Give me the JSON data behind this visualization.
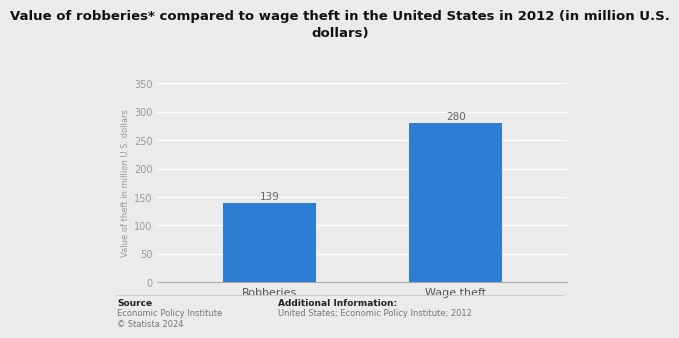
{
  "title_line1": "Value of robberies* compared to wage theft in the United States in 2012 (in million U.S.",
  "title_line2": "dollars)",
  "categories": [
    "Robberies",
    "Wage theft"
  ],
  "values": [
    139,
    280
  ],
  "bar_color": "#2e7dd4",
  "ylabel": "Value of theft in million U.S. dollars",
  "ylim": [
    0,
    350
  ],
  "yticks": [
    0,
    50,
    100,
    150,
    200,
    250,
    300,
    350
  ],
  "background_color": "#ebebeb",
  "plot_bg_color": "#ebebeb",
  "title_fontsize": 9.5,
  "label_fontsize": 8,
  "tick_fontsize": 7,
  "ylabel_fontsize": 6,
  "source_bold": "Source",
  "source_text": "Economic Policy Institute\n© Statista 2024",
  "additional_bold": "Additional Information:",
  "additional_text": "United States; Economic Policy Institute; 2012",
  "annotation_fontsize": 7.5,
  "bar_width": 0.5
}
